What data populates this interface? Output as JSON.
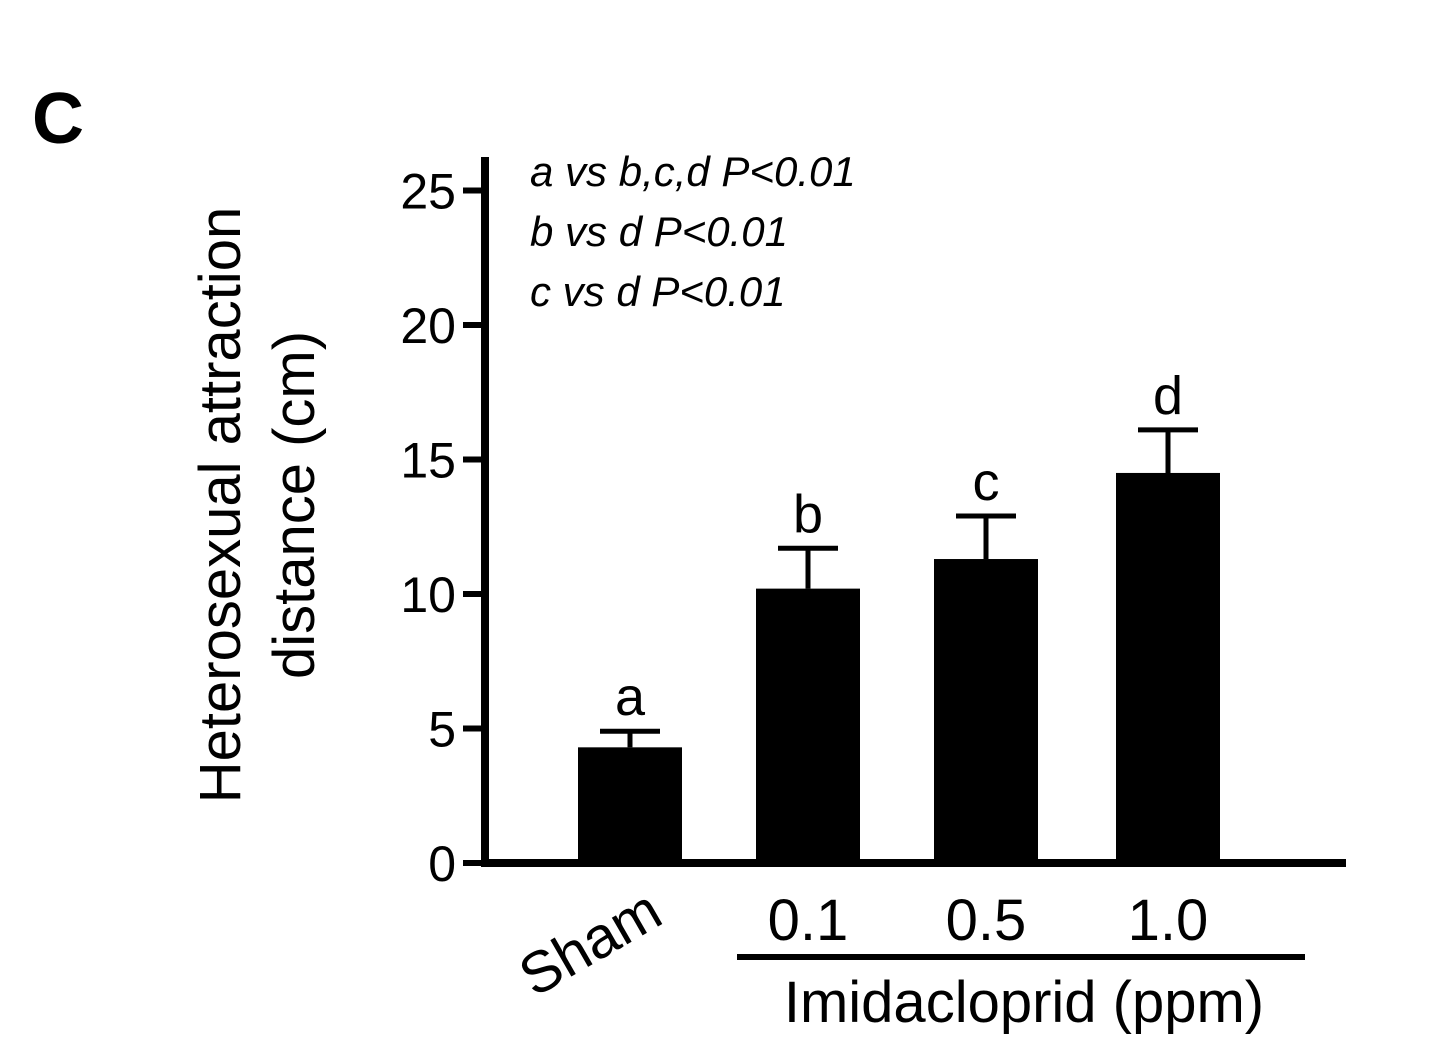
{
  "panel_label": "C",
  "chart_data": {
    "type": "bar",
    "categories": [
      "Sham",
      "0.1",
      "0.5",
      "1.0"
    ],
    "values": [
      4.3,
      10.2,
      11.3,
      14.5
    ],
    "errors": [
      0.6,
      1.5,
      1.6,
      1.6
    ],
    "significance_labels": [
      "a",
      "b",
      "c",
      "d"
    ],
    "ylabel_lines": [
      "Heterosexual attraction",
      "distance (cm)"
    ],
    "xlabel": "Imidacloprid (ppm)",
    "ylim": [
      0,
      25
    ],
    "yticks": [
      0,
      5,
      10,
      15,
      20,
      25
    ],
    "annotations": [
      "a vs b,c,d P<0.01",
      "b vs d P<0.01",
      "c vs d P<0.01"
    ],
    "bar_color": "#000000",
    "grid": false,
    "legend": "none"
  }
}
